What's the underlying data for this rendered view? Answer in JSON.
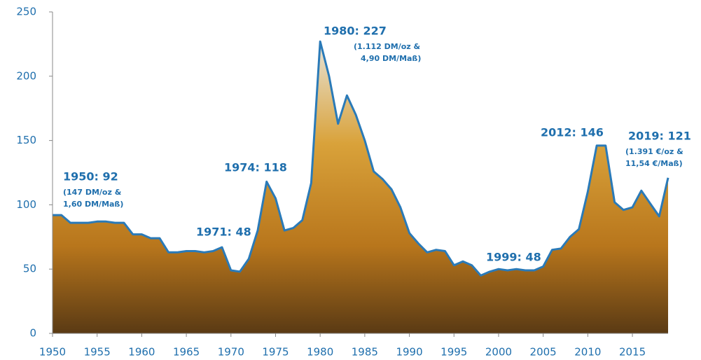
{
  "chart_data": {
    "type": "line",
    "x": [
      1950,
      1951,
      1952,
      1953,
      1954,
      1955,
      1956,
      1957,
      1958,
      1959,
      1960,
      1961,
      1962,
      1963,
      1964,
      1965,
      1966,
      1967,
      1968,
      1969,
      1970,
      1971,
      1972,
      1973,
      1974,
      1975,
      1976,
      1977,
      1978,
      1979,
      1980,
      1981,
      1982,
      1983,
      1984,
      1985,
      1986,
      1987,
      1988,
      1989,
      1990,
      1991,
      1992,
      1993,
      1994,
      1995,
      1996,
      1997,
      1998,
      1999,
      2000,
      2001,
      2002,
      2003,
      2004,
      2005,
      2006,
      2007,
      2008,
      2009,
      2010,
      2011,
      2012,
      2013,
      2014,
      2015,
      2016,
      2017,
      2018,
      2019
    ],
    "series": [
      {
        "color": "#2a7ab8",
        "values": [
          92,
          92,
          86,
          86,
          86,
          87,
          87,
          86,
          86,
          77,
          77,
          74,
          74,
          63,
          63,
          64,
          64,
          63,
          64,
          67,
          49,
          48,
          58,
          80,
          118,
          105,
          80,
          82,
          88,
          117,
          227,
          200,
          163,
          185,
          170,
          150,
          126,
          120,
          112,
          98,
          78,
          70,
          63,
          65,
          64,
          53,
          56,
          53,
          45,
          48,
          50,
          49,
          50,
          49,
          49,
          52,
          65,
          66,
          75,
          81,
          110,
          146,
          146,
          102,
          96,
          98,
          111,
          101,
          91,
          121
        ]
      }
    ],
    "xlim": [
      1950,
      2019
    ],
    "xticks": [
      1950,
      1955,
      1960,
      1965,
      1970,
      1975,
      1980,
      1985,
      1990,
      1995,
      2000,
      2005,
      2010,
      2015
    ],
    "ylim": [
      0,
      250
    ],
    "yticks": [
      0,
      50,
      100,
      150,
      200,
      250
    ],
    "annotations": [
      {
        "label": "1950: 92",
        "lines": [
          "(147 DM/oz &",
          "1,60 DM/Maß)"
        ]
      },
      {
        "label": "1971: 48",
        "lines": []
      },
      {
        "label": "1974: 118",
        "lines": []
      },
      {
        "label": "1980: 227",
        "lines": [
          "(1.112 DM/oz &",
          "4,90 DM/Maß)"
        ]
      },
      {
        "label": "1999: 48",
        "lines": []
      },
      {
        "label": "2012: 146",
        "lines": []
      },
      {
        "label": "2019: 121",
        "lines": [
          "(1.391 €/oz &",
          "11,54 €/Maß)"
        ]
      }
    ]
  }
}
